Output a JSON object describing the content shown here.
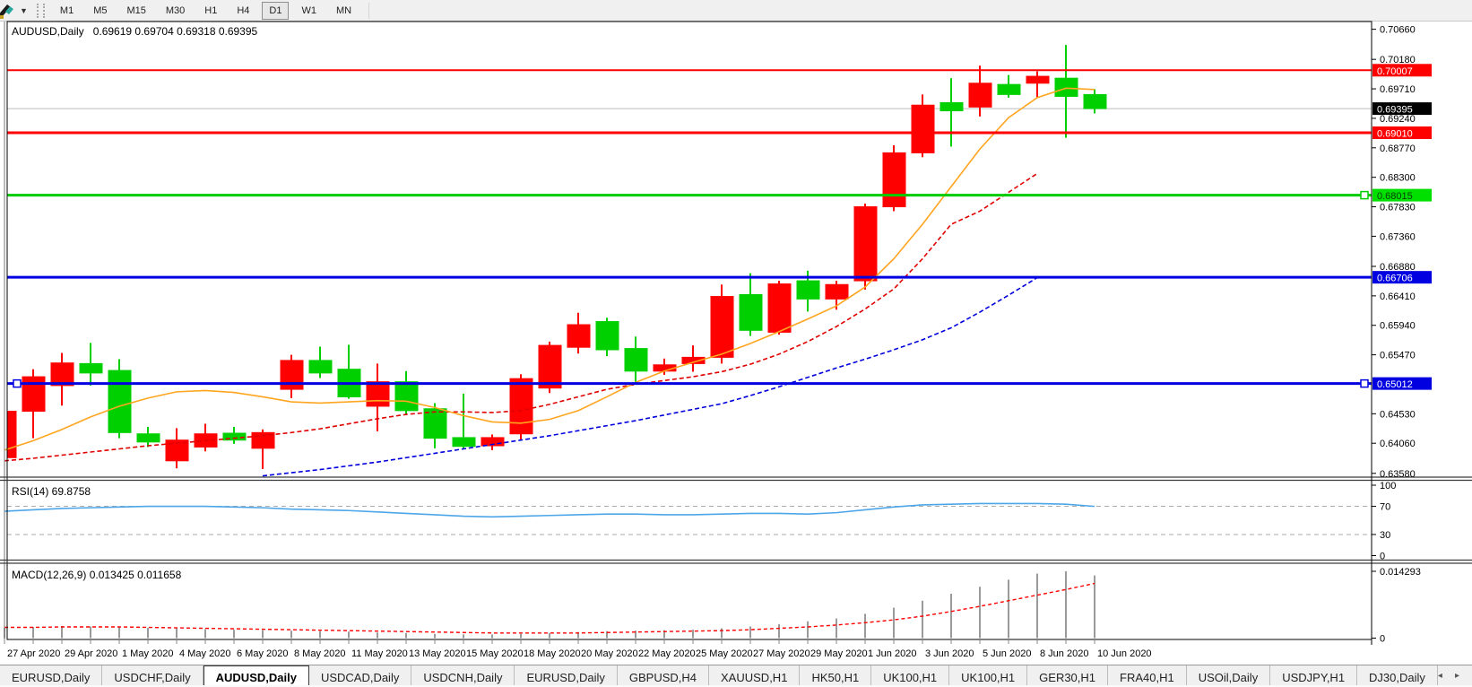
{
  "toolbar": {
    "timeframes": [
      "M1",
      "M5",
      "M15",
      "M30",
      "H1",
      "H4",
      "D1",
      "W1",
      "MN"
    ],
    "active_timeframe": "D1"
  },
  "chart": {
    "symbol_period": "AUDUSD,Daily",
    "ohlc_line": "0.69619 0.69704 0.69318 0.69395",
    "quote": {
      "open": "0.69619",
      "high": "0.69704",
      "low": "0.69318",
      "close": "0.69395"
    }
  },
  "indicators": {
    "rsi_label": "RSI(14) 69.8758",
    "macd_label": "MACD(12,26,9) 0.013425 0.011658"
  },
  "colors": {
    "bull": "#FF0000",
    "bear": "#00D000",
    "ma_fast": "#FFA520",
    "ma_mid": "#E00000",
    "ma_slow": "#0000DD",
    "rsi_line": "#4DA6E8",
    "rsi_level_dash": "#ABABAB",
    "macd_hist": "#9A9A9A",
    "macd_signal": "#FF0000",
    "current_price_line": "#BBBBBB",
    "frame": "#000000"
  },
  "chart_data": {
    "type": "candlestick",
    "title": "AUDUSD,Daily",
    "x_labels": [
      "27 Apr 2020",
      "29 Apr 2020",
      "1 May 2020",
      "4 May 2020",
      "6 May 2020",
      "8 May 2020",
      "11 May 2020",
      "13 May 2020",
      "15 May 2020",
      "18 May 2020",
      "20 May 2020",
      "22 May 2020",
      "25 May 2020",
      "27 May 2020",
      "29 May 2020",
      "1 Jun 2020",
      "3 Jun 2020",
      "5 Jun 2020",
      "8 Jun 2020",
      "10 Jun 2020"
    ],
    "x_label_every": 2,
    "price_axis": {
      "max": 0.70769,
      "min": 0.63534,
      "ticks": [
        "0.70660",
        "0.70180",
        "0.69710",
        "0.69240",
        "0.68770",
        "0.68300",
        "0.67830",
        "0.67360",
        "0.66880",
        "0.66410",
        "0.65940",
        "0.65470",
        "0.64530",
        "0.64060",
        "0.63580"
      ]
    },
    "candles_ohlc": [
      [
        0.6383,
        0.6462,
        0.6376,
        0.6457
      ],
      [
        0.6457,
        0.6524,
        0.6414,
        0.6512
      ],
      [
        0.6498,
        0.655,
        0.6466,
        0.6534
      ],
      [
        0.6533,
        0.6566,
        0.6498,
        0.6518
      ],
      [
        0.6522,
        0.654,
        0.6414,
        0.6423
      ],
      [
        0.6421,
        0.6432,
        0.64,
        0.6408
      ],
      [
        0.6378,
        0.643,
        0.6366,
        0.6411
      ],
      [
        0.64,
        0.6437,
        0.6393,
        0.6421
      ],
      [
        0.6422,
        0.6432,
        0.6405,
        0.6411
      ],
      [
        0.6398,
        0.6428,
        0.6365,
        0.6423
      ],
      [
        0.6492,
        0.6547,
        0.6478,
        0.6538
      ],
      [
        0.6538,
        0.656,
        0.651,
        0.6518
      ],
      [
        0.6524,
        0.6563,
        0.6477,
        0.648
      ],
      [
        0.6465,
        0.6533,
        0.6425,
        0.6504
      ],
      [
        0.6504,
        0.6521,
        0.6451,
        0.6458
      ],
      [
        0.6461,
        0.647,
        0.6398,
        0.6414
      ],
      [
        0.6415,
        0.6485,
        0.6398,
        0.6401
      ],
      [
        0.6402,
        0.642,
        0.6395,
        0.6415
      ],
      [
        0.6421,
        0.6516,
        0.641,
        0.6509
      ],
      [
        0.6494,
        0.6568,
        0.6486,
        0.6562
      ],
      [
        0.6559,
        0.6614,
        0.6549,
        0.6595
      ],
      [
        0.66,
        0.6606,
        0.6545,
        0.6555
      ],
      [
        0.6557,
        0.6576,
        0.6504,
        0.6521
      ],
      [
        0.6521,
        0.6541,
        0.6515,
        0.6531
      ],
      [
        0.6533,
        0.6562,
        0.652,
        0.6543
      ],
      [
        0.6543,
        0.6659,
        0.6533,
        0.664
      ],
      [
        0.6643,
        0.6677,
        0.6577,
        0.6586
      ],
      [
        0.6583,
        0.6665,
        0.6579,
        0.666
      ],
      [
        0.6665,
        0.6681,
        0.6616,
        0.6636
      ],
      [
        0.6636,
        0.6665,
        0.6619,
        0.6659
      ],
      [
        0.6665,
        0.6788,
        0.6651,
        0.6783
      ],
      [
        0.6783,
        0.6881,
        0.6776,
        0.6869
      ],
      [
        0.6869,
        0.6962,
        0.6862,
        0.6945
      ],
      [
        0.6949,
        0.6988,
        0.6879,
        0.6936
      ],
      [
        0.6942,
        0.7008,
        0.6927,
        0.698
      ],
      [
        0.6978,
        0.6993,
        0.6957,
        0.6962
      ],
      [
        0.698,
        0.6999,
        0.6957,
        0.6991
      ],
      [
        0.6988,
        0.7041,
        0.6893,
        0.6959
      ],
      [
        0.69619,
        0.69704,
        0.69318,
        0.69395
      ]
    ],
    "color_convention": "red = bullish close>=open, green = bearish",
    "ma_fast": {
      "start": 0,
      "values": [
        0.6395,
        0.641,
        0.6428,
        0.6448,
        0.6465,
        0.6478,
        0.6488,
        0.649,
        0.6487,
        0.648,
        0.6472,
        0.647,
        0.6472,
        0.6474,
        0.6473,
        0.6463,
        0.645,
        0.644,
        0.6438,
        0.6444,
        0.6458,
        0.648,
        0.6503,
        0.6521,
        0.6535,
        0.6548,
        0.6565,
        0.6584,
        0.6604,
        0.6625,
        0.6655,
        0.67,
        0.6755,
        0.6815,
        0.6875,
        0.6925,
        0.6957,
        0.6972,
        0.697
      ]
    },
    "ma_mid": {
      "start": 0,
      "values": [
        0.6378,
        0.6382,
        0.6387,
        0.6392,
        0.6397,
        0.6402,
        0.6406,
        0.641,
        0.6414,
        0.6418,
        0.6423,
        0.6429,
        0.6437,
        0.6445,
        0.6452,
        0.6456,
        0.6456,
        0.6455,
        0.6458,
        0.6468,
        0.648,
        0.6492,
        0.65,
        0.6506,
        0.6512,
        0.652,
        0.6532,
        0.6548,
        0.6568,
        0.6592,
        0.662,
        0.6652,
        0.67,
        0.6755,
        0.6776,
        0.6806,
        0.6836
      ]
    },
    "ma_slow": {
      "start": 9,
      "values": [
        0.6354,
        0.6359,
        0.6364,
        0.637,
        0.6376,
        0.6383,
        0.639,
        0.6397,
        0.6404,
        0.6411,
        0.6418,
        0.6426,
        0.6434,
        0.6442,
        0.6451,
        0.646,
        0.6469,
        0.6482,
        0.6496,
        0.6511,
        0.6526,
        0.654,
        0.6555,
        0.6571,
        0.659,
        0.6615,
        0.6642,
        0.667
      ]
    },
    "hlines": [
      {
        "price": 0.70007,
        "color": "#FF0000",
        "width": 2,
        "handles": []
      },
      {
        "price": 0.6901,
        "color": "#FF0000",
        "width": 3,
        "handles": []
      },
      {
        "price": 0.68015,
        "color": "#00CC00",
        "width": 3,
        "handles": [
          "right"
        ]
      },
      {
        "price": 0.66706,
        "color": "#0000E0",
        "width": 3,
        "handles": []
      },
      {
        "price": 0.65012,
        "color": "#0000E0",
        "width": 3,
        "handles": [
          "left",
          "right"
        ]
      }
    ],
    "current_price": 0.69395,
    "price_labels": [
      {
        "value": "0.70007",
        "price": 0.70007,
        "bg": "#FF0000",
        "fg": "#FFFFFF"
      },
      {
        "value": "0.69395",
        "price": 0.69395,
        "bg": "#000000",
        "fg": "#FFFFFF"
      },
      {
        "value": "0.69010",
        "price": 0.6901,
        "bg": "#FF0000",
        "fg": "#FFFFFF"
      },
      {
        "value": "0.68015",
        "price": 0.68015,
        "bg": "#00E000",
        "fg": "#064006"
      },
      {
        "value": "0.66706",
        "price": 0.66706,
        "bg": "#0000E0",
        "fg": "#FFFFFF"
      },
      {
        "value": "0.65012",
        "price": 0.65012,
        "bg": "#0000E0",
        "fg": "#FFFFFF"
      }
    ],
    "rsi": {
      "period": 14,
      "current": "69.8758",
      "axis_ticks": [
        "100",
        "70",
        "30",
        "0"
      ],
      "levels": [
        70,
        30
      ],
      "range": [
        0,
        100
      ],
      "values": [
        63,
        65,
        67,
        68,
        69,
        70,
        70,
        70,
        69,
        68,
        66,
        65,
        64,
        62,
        60,
        58,
        56,
        55,
        56,
        57,
        58,
        59,
        59,
        58,
        58,
        59,
        60,
        60,
        59,
        61,
        65,
        69,
        72,
        73,
        74,
        74,
        74,
        73,
        69.9
      ]
    },
    "macd": {
      "params": "12,26,9",
      "current_macd": "0.013425",
      "current_signal": "0.011658",
      "axis_ticks": [
        "0.014293",
        "0"
      ],
      "scale_max": 0.014293,
      "histogram": [
        0.0022,
        0.0024,
        0.0026,
        0.0025,
        0.0024,
        0.0022,
        0.0021,
        0.0019,
        0.0018,
        0.0017,
        0.0016,
        0.0015,
        0.0014,
        0.0012,
        0.0011,
        0.0009,
        0.0008,
        0.0008,
        0.0009,
        0.0011,
        0.0013,
        0.0015,
        0.0016,
        0.0017,
        0.0018,
        0.0021,
        0.0025,
        0.003,
        0.0036,
        0.0042,
        0.0052,
        0.0065,
        0.008,
        0.0095,
        0.011,
        0.0125,
        0.0138,
        0.0143,
        0.0134
      ],
      "signal": [
        0.0023,
        0.0023,
        0.0024,
        0.0024,
        0.0024,
        0.0023,
        0.0022,
        0.0021,
        0.002,
        0.0019,
        0.0018,
        0.0017,
        0.0016,
        0.0015,
        0.0014,
        0.0013,
        0.0012,
        0.0011,
        0.0011,
        0.0011,
        0.0011,
        0.0012,
        0.0013,
        0.0014,
        0.0015,
        0.0016,
        0.0018,
        0.0021,
        0.0024,
        0.0028,
        0.0033,
        0.0039,
        0.0047,
        0.0057,
        0.0068,
        0.008,
        0.0092,
        0.0104,
        0.0117
      ]
    }
  },
  "tabs": {
    "active_index": 2,
    "items": [
      {
        "label": "EURUSD,Daily"
      },
      {
        "label": "USDCHF,Daily"
      },
      {
        "label": "AUDUSD,Daily"
      },
      {
        "label": "USDCAD,Daily"
      },
      {
        "label": "USDCNH,Daily"
      },
      {
        "label": "EURUSD,Daily"
      },
      {
        "label": "GBPUSD,H4"
      },
      {
        "label": "XAUUSD,H1"
      },
      {
        "label": "HK50,H1"
      },
      {
        "label": "UK100,H1"
      },
      {
        "label": "UK100,H1"
      },
      {
        "label": "GER30,H1"
      },
      {
        "label": "FRA40,H1"
      },
      {
        "label": "USOil,Daily"
      },
      {
        "label": "USDJPY,H1"
      },
      {
        "label": "DJ30,Daily"
      }
    ],
    "scroll_left": "◂",
    "scroll_right": "▸"
  }
}
